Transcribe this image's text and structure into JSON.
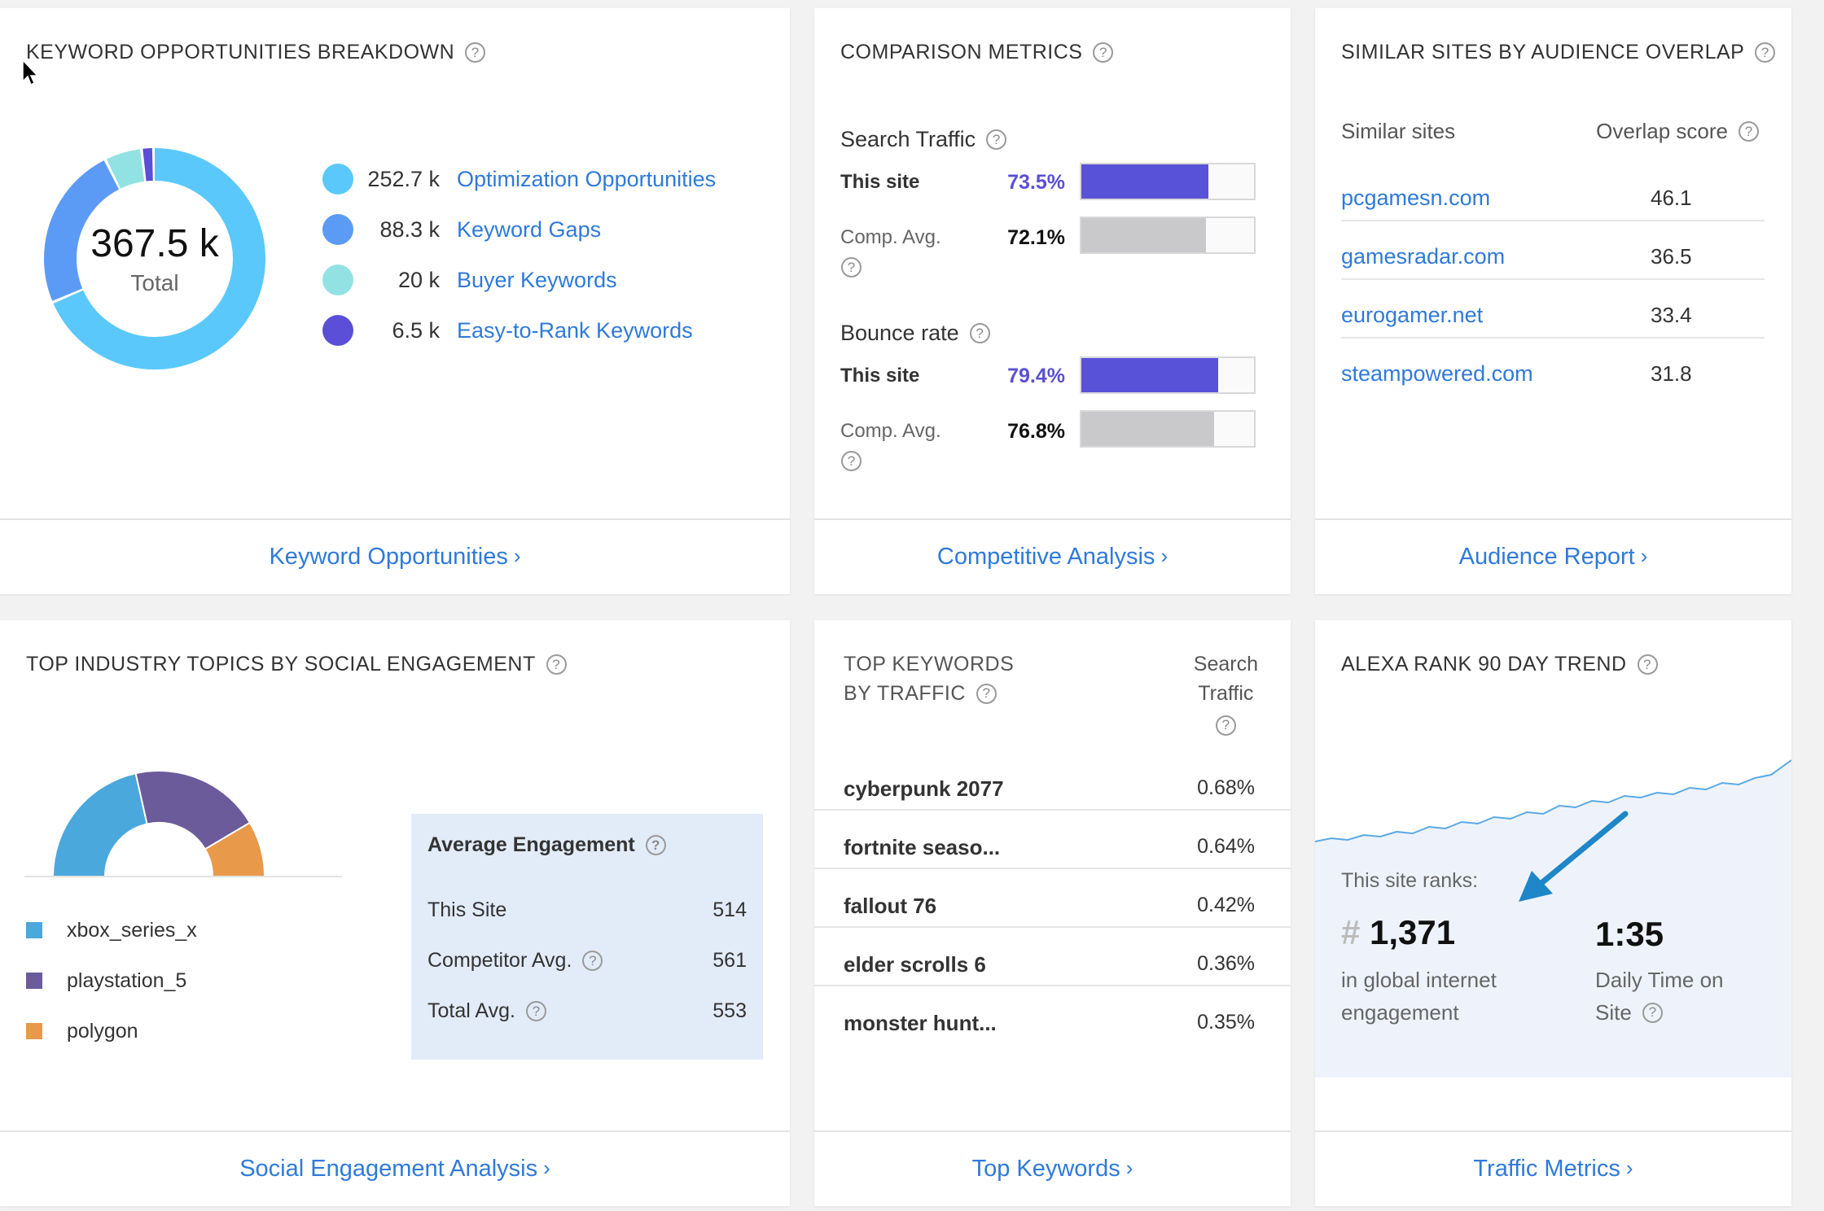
{
  "keyword_card": {
    "title": "KEYWORD OPPORTUNITIES BREAKDOWN",
    "total_value": "367.5 k",
    "total_label": "Total",
    "legend": [
      {
        "value": "252.7 k",
        "label": "Optimization Opportunities",
        "color": "#5ac8fa"
      },
      {
        "value": "88.3 k",
        "label": "Keyword Gaps",
        "color": "#5b9bf5"
      },
      {
        "value": "20 k",
        "label": "Buyer Keywords",
        "color": "#92e2e3"
      },
      {
        "value": "6.5 k",
        "label": "Easy-to-Rank Keywords",
        "color": "#5a4fd6"
      }
    ],
    "footer_link": "Keyword Opportunities"
  },
  "comparison_card": {
    "title": "COMPARISON METRICS",
    "search_traffic": {
      "label": "Search Traffic",
      "this_site_label": "This site",
      "this_site_value": "73.5%",
      "this_site_fraction": 0.735,
      "comp_label": "Comp. Avg.",
      "comp_value": "72.1%",
      "comp_fraction": 0.721
    },
    "bounce_rate": {
      "label": "Bounce rate",
      "this_site_label": "This site",
      "this_site_value": "79.4%",
      "this_site_fraction": 0.794,
      "comp_label": "Comp. Avg.",
      "comp_value": "76.8%",
      "comp_fraction": 0.768
    },
    "footer_link": "Competitive Analysis"
  },
  "similar_card": {
    "title": "SIMILAR SITES BY AUDIENCE OVERLAP",
    "col_sites": "Similar sites",
    "col_score": "Overlap score",
    "rows": [
      {
        "site": "pcgamesn.com",
        "score": "46.1"
      },
      {
        "site": "gamesradar.com",
        "score": "36.5"
      },
      {
        "site": "eurogamer.net",
        "score": "33.4"
      },
      {
        "site": "steampowered.com",
        "score": "31.8"
      }
    ],
    "footer_link": "Audience Report"
  },
  "social_card": {
    "title": "TOP INDUSTRY TOPICS BY SOCIAL ENGAGEMENT",
    "legend": [
      {
        "label": "xbox_series_x",
        "color": "#4aa8dc"
      },
      {
        "label": "playstation_5",
        "color": "#6b5b9a"
      },
      {
        "label": "polygon",
        "color": "#e8994a"
      }
    ],
    "engagement": {
      "title": "Average Engagement",
      "rows": [
        {
          "label": "This Site",
          "value": "514"
        },
        {
          "label": "Competitor Avg.",
          "value": "561"
        },
        {
          "label": "Total Avg.",
          "value": "553"
        }
      ]
    },
    "footer_link": "Social Engagement Analysis"
  },
  "top_keywords_card": {
    "title_line1": "TOP KEYWORDS",
    "title_line2": "BY TRAFFIC",
    "col_line1": "Search",
    "col_line2": "Traffic",
    "rows": [
      {
        "keyword": "cyberpunk 2077",
        "value": "0.68%"
      },
      {
        "keyword": "fortnite seaso...",
        "value": "0.64%"
      },
      {
        "keyword": "fallout 76",
        "value": "0.42%"
      },
      {
        "keyword": "elder scrolls 6",
        "value": "0.36%"
      },
      {
        "keyword": "monster hunt...",
        "value": "0.35%"
      }
    ],
    "footer_link": "Top Keywords"
  },
  "alexa_card": {
    "title": "ALEXA RANK 90 DAY TREND",
    "ranks_label": "This site ranks:",
    "hash": "#",
    "rank_value": "1,371",
    "rank_caption_1": "in global internet",
    "rank_caption_2": "engagement",
    "time_value": "1:35",
    "time_caption_1": "Daily Time on",
    "time_caption_2": "Site",
    "footer_link": "Traffic Metrics"
  },
  "colors": {
    "link": "#2f7ad9",
    "purple": "#5a4fd6",
    "bar_site": "#5852d8",
    "bar_comp": "#c9c9cc"
  }
}
